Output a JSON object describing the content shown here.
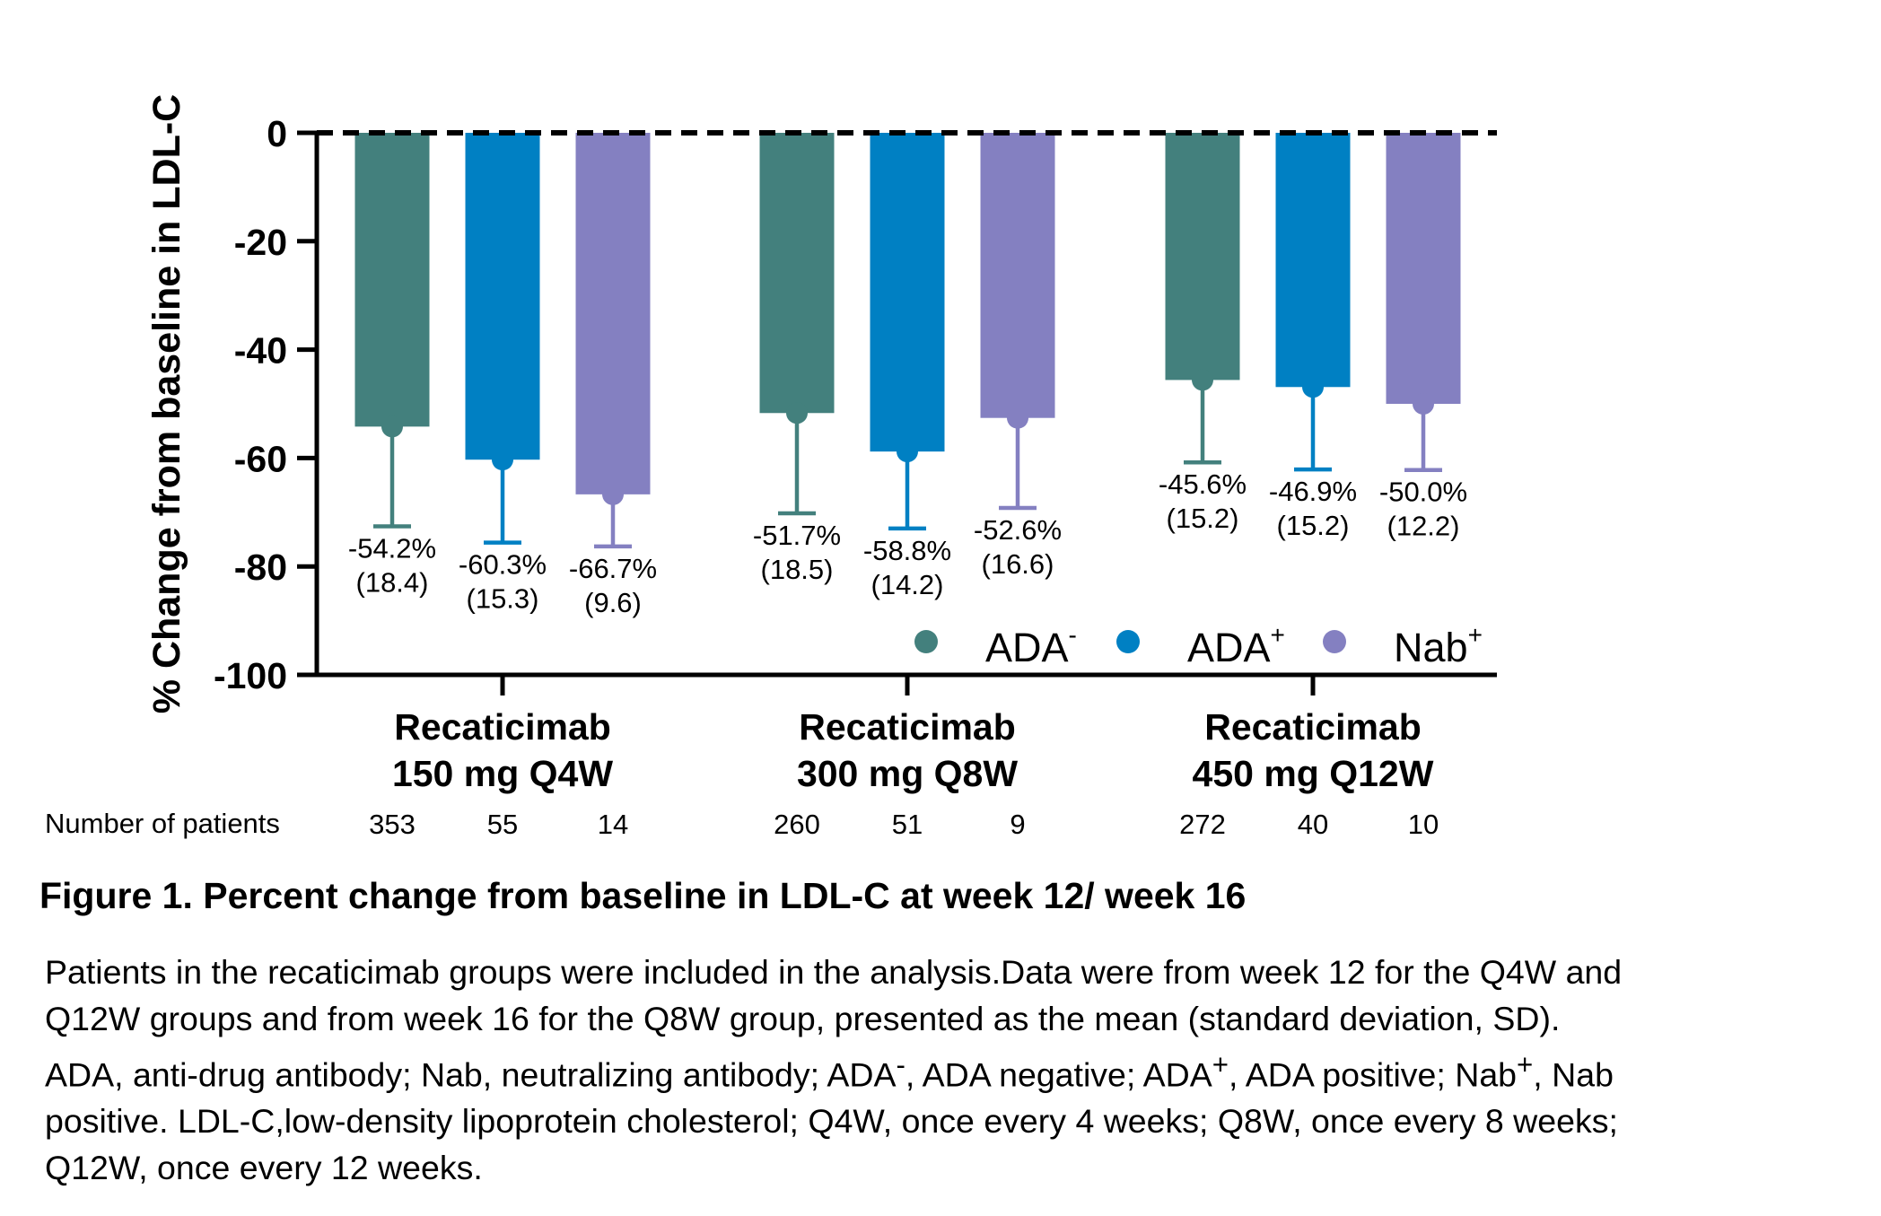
{
  "chart_data": {
    "type": "bar",
    "ylabel": "% Change  from baseline in LDL-C",
    "ylim": [
      -100,
      0
    ],
    "yticks": [
      0,
      -20,
      -40,
      -60,
      -80,
      -100
    ],
    "reference_line": 0,
    "groups": [
      {
        "line1": "Recaticimab",
        "line2": "150 mg Q4W"
      },
      {
        "line1": "Recaticimab",
        "line2": "300 mg Q8W"
      },
      {
        "line1": "Recaticimab",
        "line2": "450 mg Q12W"
      }
    ],
    "series": [
      {
        "name": "ADA",
        "sup": "-",
        "color": "#43807D",
        "values": [
          -54.2,
          -51.7,
          -45.6
        ],
        "sd": [
          18.4,
          18.5,
          15.2
        ],
        "labels": [
          "-54.2%",
          "-51.7%",
          "-45.6%"
        ],
        "sd_labels": [
          "(18.4)",
          "(18.5)",
          "(15.2)"
        ],
        "n": [
          "353",
          "260",
          "272"
        ]
      },
      {
        "name": "ADA",
        "sup": "+",
        "color": "#0080C3",
        "values": [
          -60.3,
          -58.8,
          -46.9
        ],
        "sd": [
          15.3,
          14.2,
          15.2
        ],
        "labels": [
          "-60.3%",
          "-58.8%",
          "-46.9%"
        ],
        "sd_labels": [
          "(15.3)",
          "(14.2)",
          "(15.2)"
        ],
        "n": [
          "55",
          "51",
          "40"
        ]
      },
      {
        "name": "Nab",
        "sup": "+",
        "color": "#8480C1",
        "values": [
          -66.7,
          -52.6,
          -50.0
        ],
        "sd": [
          9.6,
          16.6,
          12.2
        ],
        "labels": [
          "-66.7%",
          "-52.6%",
          "-50.0%"
        ],
        "sd_labels": [
          "(9.6)",
          "(16.6)",
          "(12.2)"
        ],
        "n": [
          "14",
          "9",
          "10"
        ]
      }
    ],
    "n_label": "Number of patients",
    "legend_position": "bottom-right inside plot"
  },
  "caption": {
    "title": "Figure 1. Percent change from baseline in LDL-C  at week 12/ week 16",
    "line1": "Patients in the recaticimab groups were included in the analysis.Data were from week 12 for the Q4W and",
    "line2": "Q12W groups and from week 16 for the Q8W group, presented as the mean (standard deviation, SD).",
    "line3a": "ADA, anti-drug antibody; Nab, neutralizing antibody; ADA",
    "line3b": ", ADA negative; ADA",
    "line3c": ", ADA positive; Nab",
    "line3d": ", Nab",
    "sup_neg": "-",
    "sup_pos": "+",
    "line4": "positive. LDL-C,low-density lipoprotein cholesterol; Q4W, once every 4 weeks;  Q8W, once every 8 weeks;",
    "line5": "Q12W, once every 12 weeks."
  }
}
